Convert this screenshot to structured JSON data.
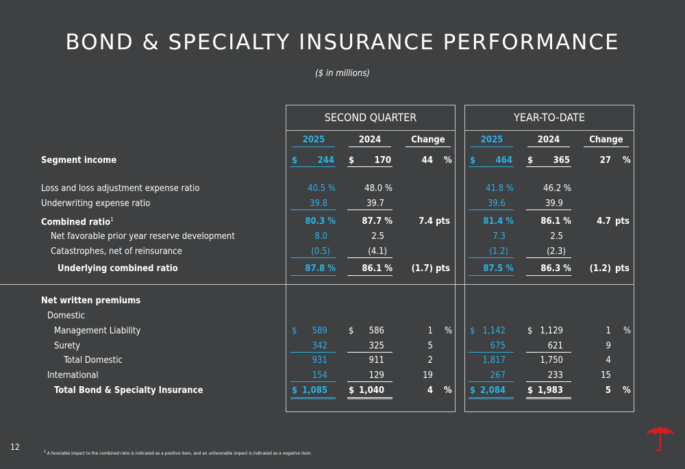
{
  "title": "BOND & SPECIALTY INSURANCE PERFORMANCE",
  "subtitle": "($ in millions)",
  "panels": {
    "quarter": "SECOND QUARTER",
    "ytd": "YEAR-TO-DATE"
  },
  "columns": {
    "q2025": "2025",
    "q2024": "2024",
    "qchange": "Change",
    "y2025": "2025",
    "y2024": "2024",
    "ychange": "Change"
  },
  "rows": {
    "segment_income": {
      "label": "Segment income",
      "q2025": "244",
      "q2024": "170",
      "qchg": "44",
      "qunit": "%",
      "y2025": "464",
      "y2024": "365",
      "ychg": "27",
      "yunit": "%"
    },
    "loss_ratio": {
      "label": "Loss and loss adjustment expense ratio",
      "q2025": "40.5 %",
      "q2024": "48.0 %",
      "y2025": "41.8 %",
      "y2024": "46.2 %"
    },
    "uw_ratio": {
      "label": "Underwriting expense ratio",
      "q2025": "39.8",
      "q2024": "39.7",
      "y2025": "39.6",
      "y2024": "39.9"
    },
    "combined_ratio": {
      "label": "Combined ratio",
      "sup": "1",
      "q2025": "80.3 %",
      "q2024": "87.7 %",
      "qchg": "7.4",
      "qunit": "pts",
      "y2025": "81.4 %",
      "y2024": "86.1 %",
      "ychg": "4.7",
      "yunit": "pts"
    },
    "pyd": {
      "label": "Net favorable prior year reserve development",
      "q2025": "8.0",
      "q2024": "2.5",
      "y2025": "7.3",
      "y2024": "2.5"
    },
    "cat": {
      "label": "Catastrophes, net of reinsurance",
      "q2025": "(0.5)",
      "q2024": "(4.1)",
      "y2025": "(1.2)",
      "y2024": "(2.3)"
    },
    "underlying": {
      "label": "Underlying combined ratio",
      "q2025": "87.8 %",
      "q2024": "86.1 %",
      "qchg": "(1.7)",
      "qunit": "pts",
      "y2025": "87.5 %",
      "y2024": "86.3 %",
      "ychg": "(1.2)",
      "yunit": "pts"
    },
    "nwp": {
      "label": "Net written premiums"
    },
    "domestic": {
      "label": "Domestic"
    },
    "mgmt": {
      "label": "Management Liability",
      "q2025": "589",
      "q2024": "586",
      "qchg": "1",
      "qunit": "%",
      "y2025": "1,142",
      "y2024": "1,129",
      "ychg": "1",
      "yunit": "%"
    },
    "surety": {
      "label": "Surety",
      "q2025": "342",
      "q2024": "325",
      "qchg": "5",
      "y2025": "675",
      "y2024": "621",
      "ychg": "9"
    },
    "total_dom": {
      "label": "Total Domestic",
      "q2025": "931",
      "q2024": "911",
      "qchg": "2",
      "y2025": "1,817",
      "y2024": "1,750",
      "ychg": "4"
    },
    "intl": {
      "label": "International",
      "q2025": "154",
      "q2024": "129",
      "qchg": "19",
      "y2025": "267",
      "y2024": "233",
      "ychg": "15"
    },
    "total_bsi": {
      "label": "Total Bond & Specialty Insurance",
      "q2025": "1,085",
      "q2024": "1,040",
      "qchg": "4",
      "qunit": "%",
      "y2025": "2,084",
      "y2024": "1,983",
      "ychg": "5",
      "yunit": "%"
    }
  },
  "dollar_sign": "$",
  "page_number": "12",
  "footnote": {
    "sup": "1",
    "text": "A favorable impact to the combined ratio is indicated as a positive item, and an unfavorable impact is indicated as a negative item."
  },
  "colors": {
    "background": "#3e4042",
    "accent_blue": "#2bb3e6",
    "logo_red": "#d21f26"
  },
  "icons": {
    "logo": "red-umbrella-logo"
  }
}
